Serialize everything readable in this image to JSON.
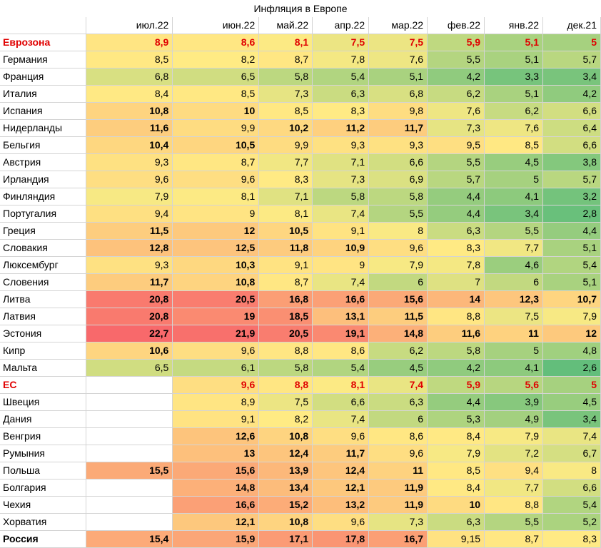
{
  "chart_data": {
    "type": "heatmap",
    "title": "Инфляция в Европе",
    "columns": [
      "июл.22",
      "июн.22",
      "май.22",
      "апр.22",
      "мар.22",
      "фев.22",
      "янв.22",
      "дек.21"
    ],
    "color_scale": {
      "low": "#63be7b",
      "mid": "#ffeb84",
      "high": "#f8696b"
    },
    "rows": [
      {
        "name": "Еврозона",
        "highlight": true,
        "values": [
          "8,9",
          "8,6",
          "8,1",
          "7,5",
          "7,5",
          "5,9",
          "5,1",
          "5"
        ]
      },
      {
        "name": "Германия",
        "values": [
          "8,5",
          "8,2",
          "8,7",
          "7,8",
          "7,6",
          "5,5",
          "5,1",
          "5,7"
        ]
      },
      {
        "name": "Франция",
        "values": [
          "6,8",
          "6,5",
          "5,8",
          "5,4",
          "5,1",
          "4,2",
          "3,3",
          "3,4"
        ]
      },
      {
        "name": "Италия",
        "values": [
          "8,4",
          "8,5",
          "7,3",
          "6,3",
          "6,8",
          "6,2",
          "5,1",
          "4,2"
        ]
      },
      {
        "name": "Испания",
        "values": [
          "10,8",
          "10",
          "8,5",
          "8,3",
          "9,8",
          "7,6",
          "6,2",
          "6,6"
        ]
      },
      {
        "name": "Нидерланды",
        "values": [
          "11,6",
          "9,9",
          "10,2",
          "11,2",
          "11,7",
          "7,3",
          "7,6",
          "6,4"
        ]
      },
      {
        "name": "Бельгия",
        "values": [
          "10,4",
          "10,5",
          "9,9",
          "9,3",
          "9,3",
          "9,5",
          "8,5",
          "6,6"
        ]
      },
      {
        "name": "Австрия",
        "values": [
          "9,3",
          "8,7",
          "7,7",
          "7,1",
          "6,6",
          "5,5",
          "4,5",
          "3,8"
        ]
      },
      {
        "name": "Ирландия",
        "values": [
          "9,6",
          "9,6",
          "8,3",
          "7,3",
          "6,9",
          "5,7",
          "5",
          "5,7"
        ]
      },
      {
        "name": "Финляндия",
        "values": [
          "7,9",
          "8,1",
          "7,1",
          "5,8",
          "5,8",
          "4,4",
          "4,1",
          "3,2"
        ]
      },
      {
        "name": "Португалия",
        "values": [
          "9,4",
          "9",
          "8,1",
          "7,4",
          "5,5",
          "4,4",
          "3,4",
          "2,8"
        ]
      },
      {
        "name": "Греция",
        "values": [
          "11,5",
          "12",
          "10,5",
          "9,1",
          "8",
          "6,3",
          "5,5",
          "4,4"
        ]
      },
      {
        "name": "Словакия",
        "values": [
          "12,8",
          "12,5",
          "11,8",
          "10,9",
          "9,6",
          "8,3",
          "7,7",
          "5,1"
        ]
      },
      {
        "name": "Люксембург",
        "values": [
          "9,3",
          "10,3",
          "9,1",
          "9",
          "7,9",
          "7,8",
          "4,6",
          "5,4"
        ]
      },
      {
        "name": "Словения",
        "values": [
          "11,7",
          "10,8",
          "8,7",
          "7,4",
          "6",
          "7",
          "6",
          "5,1"
        ]
      },
      {
        "name": "Литва",
        "values": [
          "20,8",
          "20,5",
          "16,8",
          "16,6",
          "15,6",
          "14",
          "12,3",
          "10,7"
        ]
      },
      {
        "name": "Латвия",
        "values": [
          "20,8",
          "19",
          "18,5",
          "13,1",
          "11,5",
          "8,8",
          "7,5",
          "7,9"
        ]
      },
      {
        "name": "Эстония",
        "values": [
          "22,7",
          "21,9",
          "20,5",
          "19,1",
          "14,8",
          "11,6",
          "11",
          "12"
        ]
      },
      {
        "name": "Кипр",
        "values": [
          "10,6",
          "9,6",
          "8,8",
          "8,6",
          "6,2",
          "5,8",
          "5",
          "4,8"
        ]
      },
      {
        "name": "Мальта",
        "values": [
          "6,5",
          "6,1",
          "5,8",
          "5,4",
          "4,5",
          "4,2",
          "4,1",
          "2,6"
        ]
      },
      {
        "name": "ЕС",
        "highlight": true,
        "values": [
          "",
          "9,6",
          "8,8",
          "8,1",
          "7,4",
          "5,9",
          "5,6",
          "5"
        ]
      },
      {
        "name": "Швеция",
        "values": [
          "",
          "8,9",
          "7,5",
          "6,6",
          "6,3",
          "4,4",
          "3,9",
          "4,5"
        ]
      },
      {
        "name": "Дания",
        "values": [
          "",
          "9,1",
          "8,2",
          "7,4",
          "6",
          "5,3",
          "4,9",
          "3,4"
        ]
      },
      {
        "name": "Венгрия",
        "values": [
          "",
          "12,6",
          "10,8",
          "9,6",
          "8,6",
          "8,4",
          "7,9",
          "7,4"
        ]
      },
      {
        "name": "Румыния",
        "values": [
          "",
          "13",
          "12,4",
          "11,7",
          "9,6",
          "7,9",
          "7,2",
          "6,7"
        ]
      },
      {
        "name": "Польша",
        "values": [
          "15,5",
          "15,6",
          "13,9",
          "12,4",
          "11",
          "8,5",
          "9,4",
          "8"
        ]
      },
      {
        "name": "Болгария",
        "values": [
          "",
          "14,8",
          "13,4",
          "12,1",
          "11,9",
          "8,4",
          "7,7",
          "6,6"
        ]
      },
      {
        "name": "Чехия",
        "values": [
          "",
          "16,6",
          "15,2",
          "13,2",
          "11,9",
          "10",
          "8,8",
          "5,4"
        ]
      },
      {
        "name": "Хорватия",
        "values": [
          "",
          "12,1",
          "10,8",
          "9,6",
          "7,3",
          "6,3",
          "5,5",
          "5,2"
        ]
      },
      {
        "name": "Россия",
        "bold_label": true,
        "values": [
          "15,4",
          "15,9",
          "17,1",
          "17,8",
          "16,7",
          "9,15",
          "8,7",
          "8,3"
        ]
      }
    ]
  }
}
